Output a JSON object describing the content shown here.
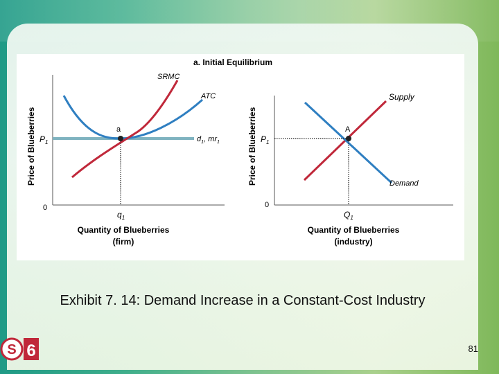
{
  "slide": {
    "caption": "Exhibit 7. 14: Demand Increase in a Constant-Cost Industry",
    "page_number": "81",
    "logo_text": "S6"
  },
  "diagram": {
    "title": "a. Initial Equilibrium",
    "firm_panel": {
      "y_axis_label": "Price of Blueberries",
      "x_axis_label_line1": "Quantity of Blueberries",
      "x_axis_label_line2": "(firm)",
      "price_label": "P",
      "price_sub": "1",
      "origin_label": "0",
      "quantity_label": "q",
      "quantity_sub": "1",
      "point_label": "a",
      "srmc_label": "SRMC",
      "atc_label": "ATC",
      "demand_label": "d",
      "demand_sub": "1",
      "mr_label": "mr",
      "mr_sub": "1",
      "sep": ", "
    },
    "industry_panel": {
      "y_axis_label": "Price of Blueberries",
      "x_axis_label_line1": "Quantity of Blueberries",
      "x_axis_label_line2": "(industry)",
      "price_label": "P",
      "price_sub": "1",
      "origin_label": "0",
      "quantity_label": "Q",
      "quantity_sub": "1",
      "point_label": "A",
      "supply_label": "Supply",
      "demand_label": "Demand"
    },
    "colors": {
      "srmc": "#c0283a",
      "atc": "#2f7fc1",
      "firm_demand": "#7fb3c0",
      "supply": "#c0283a",
      "demand": "#2f7fc1"
    }
  }
}
